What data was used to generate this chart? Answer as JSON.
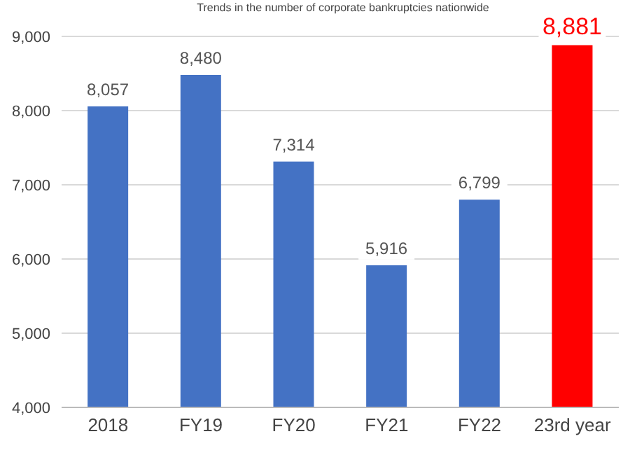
{
  "chart_data": {
    "type": "bar",
    "title": "Trends in the number of corporate bankruptcies nationwide",
    "categories": [
      "2018",
      "FY19",
      "FY20",
      "FY21",
      "FY22",
      "23rd year"
    ],
    "values": [
      8057,
      8480,
      7314,
      5916,
      6799,
      8881
    ],
    "colors": [
      "#4472c4",
      "#4472c4",
      "#4472c4",
      "#4472c4",
      "#4472c4",
      "#ff0000"
    ],
    "ylim": [
      4000,
      9000
    ],
    "yticks": [
      {
        "value": 4000,
        "label": "4,000"
      },
      {
        "value": 5000,
        "label": "5,000"
      },
      {
        "value": 6000,
        "label": "6,000"
      },
      {
        "value": 7000,
        "label": "7,000"
      },
      {
        "value": 8000,
        "label": "8,000"
      },
      {
        "value": 9000,
        "label": "9,000"
      }
    ],
    "value_labels": [
      "8,057",
      "8,480",
      "7,314",
      "5,916",
      "6,799",
      "8,881"
    ],
    "grid": "y"
  }
}
